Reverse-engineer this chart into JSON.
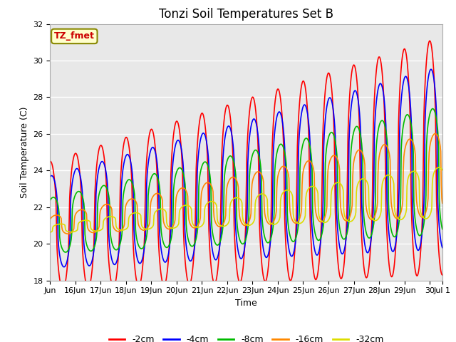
{
  "title": "Tonzi Soil Temperatures Set B",
  "xlabel": "Time",
  "ylabel": "Soil Temperature (C)",
  "ylim": [
    18,
    32
  ],
  "annotation": "TZ_fmet",
  "series_labels": [
    "-2cm",
    "-4cm",
    "-8cm",
    "-16cm",
    "-32cm"
  ],
  "series_colors": [
    "#ff0000",
    "#0000ff",
    "#00bb00",
    "#ff8800",
    "#dddd00"
  ],
  "background_color": "#ffffff",
  "plot_bg_color": "#e8e8e8",
  "grid_color": "#ffffff",
  "title_fontsize": 12,
  "legend_fontsize": 9,
  "axis_label_fontsize": 9,
  "tick_fontsize": 8,
  "xtick_labels": [
    "Jun",
    "16Jun",
    "17Jun",
    "18Jun",
    "19Jun",
    "20Jun",
    "21Jun",
    "22Jun",
    "23Jun",
    "24Jun",
    "25Jun",
    "26Jun",
    "27Jun",
    "28Jun",
    "29Jun",
    "30",
    "Jul 1"
  ],
  "yticks": [
    18,
    20,
    22,
    24,
    26,
    28,
    30,
    32
  ]
}
